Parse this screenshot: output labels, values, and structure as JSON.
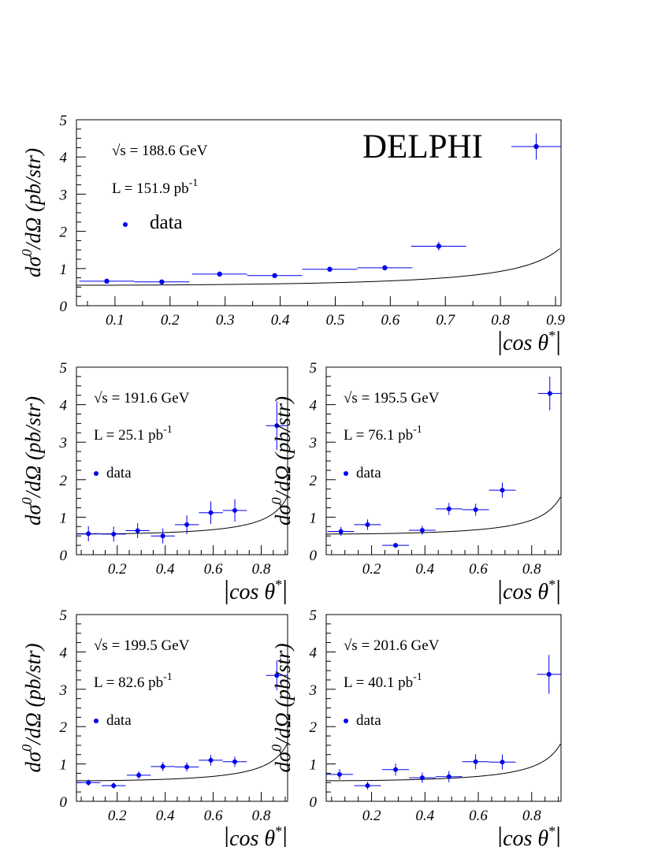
{
  "experiment_label": "DELPHI",
  "colors": {
    "data": "#0000ee",
    "curve": "#000000",
    "frame": "#000000"
  },
  "chart_data": [
    {
      "type": "scatter",
      "title": "",
      "xlabel_parts": [
        "|",
        "cos θ",
        "*",
        "|"
      ],
      "ylabel_parts": [
        "dσ",
        "0",
        "/dΩ (pb/str)"
      ],
      "energy_label": "√s = 188.6 GeV",
      "lumi_label": "L = 151.9 pb",
      "lumi_sup": "-1",
      "legend_label": "data",
      "xlim": [
        0.03,
        0.91
      ],
      "ylim": [
        0,
        5
      ],
      "xticks": [
        0.1,
        0.2,
        0.3,
        0.4,
        0.5,
        0.6,
        0.7,
        0.8,
        0.9
      ],
      "xtick_labels": [
        "0.1",
        "0.2",
        "0.3",
        "0.4",
        "0.5",
        "0.6",
        "0.7",
        "0.8",
        "0.9"
      ],
      "yticks": [
        0,
        1,
        2,
        3,
        4,
        5
      ],
      "ytick_labels": [
        "0",
        "1",
        "2",
        "3",
        "4",
        "5"
      ],
      "series": [
        {
          "name": "data",
          "x": [
            0.085,
            0.185,
            0.29,
            0.39,
            0.49,
            0.59,
            0.688,
            0.865
          ],
          "y": [
            0.66,
            0.64,
            0.85,
            0.81,
            0.98,
            1.02,
            1.6,
            4.28
          ],
          "xerr": [
            0.05,
            0.05,
            0.05,
            0.05,
            0.05,
            0.05,
            0.05,
            0.045
          ],
          "yerr": [
            0.04,
            0.04,
            0.05,
            0.05,
            0.06,
            0.06,
            0.12,
            0.35
          ]
        }
      ],
      "curve": {
        "name": "prediction",
        "a": 0.55,
        "b": 0.21
      }
    },
    {
      "type": "scatter",
      "xlabel_parts": [
        "|",
        "cos θ",
        "*",
        "|"
      ],
      "ylabel_parts": [
        "dσ",
        "0",
        "/dΩ (pb/str)"
      ],
      "energy_label": "√s = 191.6 GeV",
      "lumi_label": "L = 25.1 pb",
      "lumi_sup": "-1",
      "legend_label": "data",
      "xlim": [
        0.03,
        0.91
      ],
      "ylim": [
        0,
        5
      ],
      "xticks": [
        0.2,
        0.4,
        0.6,
        0.8
      ],
      "xtick_labels": [
        "0.2",
        "0.4",
        "0.6",
        "0.8"
      ],
      "yticks": [
        0,
        1,
        2,
        3,
        4,
        5
      ],
      "ytick_labels": [
        "0",
        "1",
        "2",
        "3",
        "4",
        "5"
      ],
      "series": [
        {
          "name": "data",
          "x": [
            0.08,
            0.185,
            0.285,
            0.39,
            0.49,
            0.59,
            0.69,
            0.865
          ],
          "y": [
            0.56,
            0.55,
            0.64,
            0.5,
            0.8,
            1.12,
            1.18,
            3.44
          ],
          "xerr": [
            0.05,
            0.05,
            0.05,
            0.05,
            0.05,
            0.05,
            0.05,
            0.045
          ],
          "yerr": [
            0.2,
            0.2,
            0.2,
            0.2,
            0.25,
            0.3,
            0.3,
            0.65
          ]
        }
      ],
      "curve": {
        "name": "prediction",
        "a": 0.55,
        "b": 0.21
      }
    },
    {
      "type": "scatter",
      "xlabel_parts": [
        "|",
        "cos θ",
        "*",
        "|"
      ],
      "ylabel_parts": [
        "dσ",
        "0",
        "/dΩ (pb/str)"
      ],
      "energy_label": "√s = 195.5 GeV",
      "lumi_label": "L = 76.1 pb",
      "lumi_sup": "-1",
      "legend_label": "data",
      "xlim": [
        0.03,
        0.91
      ],
      "ylim": [
        0,
        5
      ],
      "xticks": [
        0.2,
        0.4,
        0.6,
        0.8
      ],
      "xtick_labels": [
        "0.2",
        "0.4",
        "0.6",
        "0.8"
      ],
      "yticks": [
        0,
        1,
        2,
        3,
        4,
        5
      ],
      "ytick_labels": [
        "0",
        "1",
        "2",
        "3",
        "4",
        "5"
      ],
      "series": [
        {
          "name": "data",
          "x": [
            0.085,
            0.185,
            0.29,
            0.39,
            0.49,
            0.59,
            0.69,
            0.868
          ],
          "y": [
            0.62,
            0.8,
            0.25,
            0.65,
            1.22,
            1.2,
            1.72,
            4.3
          ],
          "xerr": [
            0.05,
            0.05,
            0.05,
            0.05,
            0.05,
            0.05,
            0.05,
            0.045
          ],
          "yerr": [
            0.12,
            0.14,
            0.06,
            0.12,
            0.16,
            0.16,
            0.2,
            0.45
          ]
        }
      ],
      "curve": {
        "name": "prediction",
        "a": 0.55,
        "b": 0.21
      }
    },
    {
      "type": "scatter",
      "xlabel_parts": [
        "|",
        "cos θ",
        "*",
        "|"
      ],
      "ylabel_parts": [
        "dσ",
        "0",
        "/dΩ (pb/str)"
      ],
      "energy_label": "√s = 199.5 GeV",
      "lumi_label": "L = 82.6 pb",
      "lumi_sup": "-1",
      "legend_label": "data",
      "xlim": [
        0.03,
        0.91
      ],
      "ylim": [
        0,
        5
      ],
      "xticks": [
        0.2,
        0.4,
        0.6,
        0.8
      ],
      "xtick_labels": [
        "0.2",
        "0.4",
        "0.6",
        "0.8"
      ],
      "yticks": [
        0,
        1,
        2,
        3,
        4,
        5
      ],
      "ytick_labels": [
        "0",
        "1",
        "2",
        "3",
        "4",
        "5"
      ],
      "series": [
        {
          "name": "data",
          "x": [
            0.08,
            0.185,
            0.29,
            0.39,
            0.49,
            0.59,
            0.69,
            0.865
          ],
          "y": [
            0.5,
            0.42,
            0.7,
            0.93,
            0.92,
            1.1,
            1.06,
            3.37
          ],
          "xerr": [
            0.05,
            0.05,
            0.05,
            0.05,
            0.05,
            0.05,
            0.05,
            0.045
          ],
          "yerr": [
            0.08,
            0.08,
            0.1,
            0.12,
            0.12,
            0.14,
            0.14,
            0.4
          ]
        }
      ],
      "curve": {
        "name": "prediction",
        "a": 0.55,
        "b": 0.21
      }
    },
    {
      "type": "scatter",
      "xlabel_parts": [
        "|",
        "cos θ",
        "*",
        "|"
      ],
      "ylabel_parts": [
        "dσ",
        "0",
        "/dΩ (pb/str)"
      ],
      "energy_label": "√s = 201.6 GeV",
      "lumi_label": "L = 40.1 pb",
      "lumi_sup": "-1",
      "legend_label": "data",
      "xlim": [
        0.03,
        0.91
      ],
      "ylim": [
        0,
        5
      ],
      "xticks": [
        0.2,
        0.4,
        0.6,
        0.8
      ],
      "xtick_labels": [
        "0.2",
        "0.4",
        "0.6",
        "0.8"
      ],
      "yticks": [
        0,
        1,
        2,
        3,
        4,
        5
      ],
      "ytick_labels": [
        "0",
        "1",
        "2",
        "3",
        "4",
        "5"
      ],
      "series": [
        {
          "name": "data",
          "x": [
            0.08,
            0.185,
            0.29,
            0.39,
            0.49,
            0.59,
            0.69,
            0.865
          ],
          "y": [
            0.72,
            0.42,
            0.85,
            0.63,
            0.66,
            1.06,
            1.05,
            3.4
          ],
          "xerr": [
            0.05,
            0.05,
            0.05,
            0.05,
            0.05,
            0.05,
            0.05,
            0.045
          ],
          "yerr": [
            0.14,
            0.1,
            0.16,
            0.14,
            0.15,
            0.2,
            0.2,
            0.52
          ]
        }
      ],
      "curve": {
        "name": "prediction",
        "a": 0.55,
        "b": 0.21
      }
    }
  ]
}
